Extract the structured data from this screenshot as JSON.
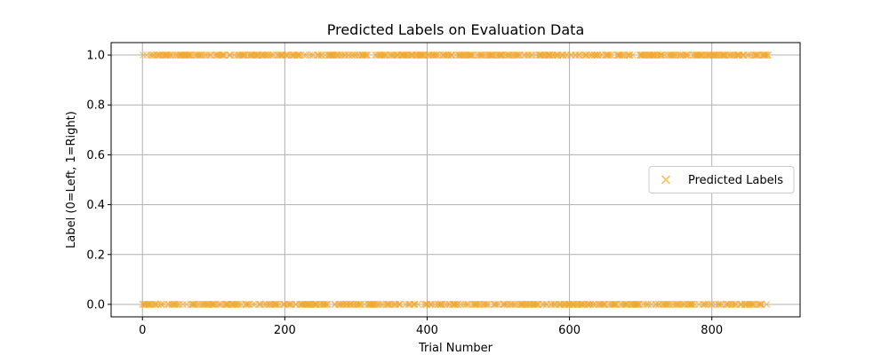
{
  "chart_data": {
    "type": "scatter",
    "title": "Predicted Labels on Evaluation Data",
    "xlabel": "Trial Number",
    "ylabel": "Label (0=Left, 1=Right)",
    "xlim": [
      -44,
      924
    ],
    "ylim": [
      -0.05,
      1.05
    ],
    "xticks": [
      0,
      200,
      400,
      600,
      800
    ],
    "xtick_labels": [
      "0",
      "200",
      "400",
      "600",
      "800"
    ],
    "yticks": [
      0.0,
      0.2,
      0.4,
      0.6,
      0.8,
      1.0
    ],
    "ytick_labels": [
      "0.0",
      "0.2",
      "0.4",
      "0.6",
      "0.8",
      "1.0"
    ],
    "grid": true,
    "legend": {
      "position": "center-right",
      "entries": [
        "Predicted Labels"
      ]
    },
    "marker": "x",
    "color": "#f5a623",
    "n_points": 880,
    "series": [
      {
        "name": "Predicted Labels",
        "x_range": [
          0,
          879
        ],
        "y_values_present": [
          0,
          1
        ],
        "note": ""
      }
    ]
  }
}
